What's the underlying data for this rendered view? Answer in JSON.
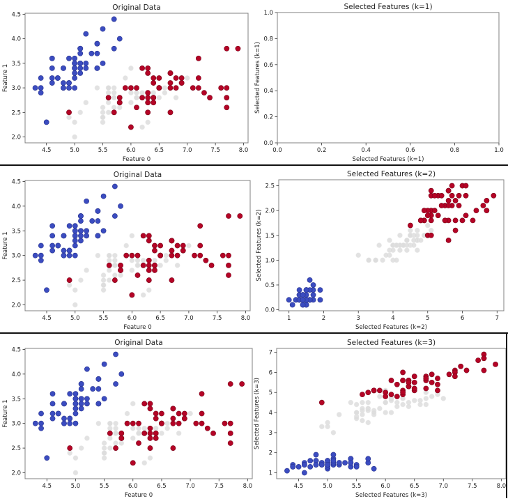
{
  "colors": {
    "class_0": "#3b4cc0",
    "class_1": "#dddddd",
    "class_2": "#b40426",
    "axis": "#808080",
    "text": "#222222"
  },
  "iris": {
    "sepal_length": [
      5.1,
      4.9,
      4.7,
      4.6,
      5.0,
      5.4,
      4.6,
      5.0,
      4.4,
      4.9,
      5.4,
      4.8,
      4.8,
      4.3,
      5.8,
      5.7,
      5.4,
      5.1,
      5.7,
      5.1,
      5.4,
      5.1,
      4.6,
      5.1,
      4.8,
      5.0,
      5.0,
      5.2,
      5.2,
      4.7,
      4.8,
      5.4,
      5.2,
      5.5,
      4.9,
      5.0,
      5.5,
      4.9,
      4.4,
      5.1,
      5.0,
      4.5,
      4.4,
      5.0,
      5.1,
      4.8,
      5.1,
      4.6,
      5.3,
      5.0,
      7.0,
      6.4,
      6.9,
      5.5,
      6.5,
      5.7,
      6.3,
      4.9,
      6.6,
      5.2,
      5.0,
      5.9,
      6.0,
      6.1,
      5.6,
      6.7,
      5.6,
      5.8,
      6.2,
      5.6,
      5.9,
      6.1,
      6.3,
      6.1,
      6.4,
      6.6,
      6.8,
      6.7,
      6.0,
      5.7,
      5.5,
      5.5,
      5.8,
      6.0,
      5.4,
      6.0,
      6.7,
      6.3,
      5.6,
      5.5,
      5.5,
      6.1,
      5.8,
      5.0,
      5.6,
      5.7,
      5.7,
      6.2,
      5.1,
      5.7,
      6.3,
      5.8,
      7.1,
      6.3,
      6.5,
      7.6,
      4.9,
      7.3,
      6.7,
      7.2,
      6.5,
      6.4,
      6.8,
      5.7,
      5.8,
      6.4,
      6.5,
      7.7,
      7.7,
      6.0,
      6.9,
      5.6,
      7.7,
      6.3,
      6.7,
      7.2,
      6.2,
      6.1,
      6.4,
      7.2,
      7.4,
      7.9,
      6.4,
      6.3,
      6.1,
      7.7,
      6.3,
      6.4,
      6.0,
      6.9,
      6.7,
      6.9,
      5.8,
      6.8,
      6.7,
      6.7,
      6.3,
      6.5,
      6.2,
      5.9
    ],
    "sepal_width": [
      3.5,
      3.0,
      3.2,
      3.1,
      3.6,
      3.9,
      3.4,
      3.4,
      2.9,
      3.1,
      3.7,
      3.4,
      3.0,
      3.0,
      4.0,
      4.4,
      3.9,
      3.5,
      3.8,
      3.8,
      3.4,
      3.7,
      3.6,
      3.3,
      3.4,
      3.0,
      3.4,
      3.5,
      3.4,
      3.2,
      3.1,
      3.4,
      4.1,
      4.2,
      3.1,
      3.2,
      3.5,
      3.6,
      3.0,
      3.4,
      3.5,
      2.3,
      3.2,
      3.5,
      3.8,
      3.0,
      3.8,
      3.2,
      3.7,
      3.3,
      3.2,
      3.2,
      3.1,
      2.3,
      2.8,
      2.8,
      3.3,
      2.4,
      2.9,
      2.7,
      2.0,
      3.0,
      2.2,
      2.9,
      2.9,
      3.1,
      3.0,
      2.7,
      2.2,
      2.5,
      3.2,
      2.8,
      2.5,
      2.8,
      2.9,
      3.0,
      2.8,
      3.0,
      2.9,
      2.6,
      2.4,
      2.4,
      2.7,
      2.7,
      3.0,
      3.4,
      3.1,
      2.3,
      3.0,
      2.5,
      2.6,
      3.0,
      2.6,
      2.3,
      2.7,
      3.0,
      2.9,
      2.9,
      2.5,
      2.8,
      3.3,
      2.7,
      3.0,
      2.9,
      3.0,
      3.0,
      2.5,
      2.9,
      2.5,
      3.6,
      3.2,
      2.7,
      3.0,
      2.5,
      2.8,
      3.2,
      3.0,
      3.8,
      2.6,
      2.2,
      3.2,
      2.8,
      2.8,
      2.7,
      3.3,
      3.2,
      2.8,
      3.0,
      2.8,
      3.0,
      2.8,
      3.8,
      2.8,
      2.8,
      2.6,
      3.0,
      3.4,
      3.1,
      3.0,
      3.1,
      3.1,
      3.1,
      2.7,
      3.2,
      3.3,
      3.0,
      2.5,
      3.0,
      3.4,
      3.0
    ],
    "petal_length": [
      1.4,
      1.4,
      1.3,
      1.5,
      1.4,
      1.7,
      1.4,
      1.5,
      1.4,
      1.5,
      1.5,
      1.6,
      1.4,
      1.1,
      1.2,
      1.5,
      1.3,
      1.4,
      1.7,
      1.5,
      1.7,
      1.5,
      1.0,
      1.7,
      1.9,
      1.6,
      1.6,
      1.5,
      1.4,
      1.6,
      1.6,
      1.5,
      1.5,
      1.4,
      1.5,
      1.2,
      1.3,
      1.4,
      1.3,
      1.5,
      1.3,
      1.3,
      1.3,
      1.6,
      1.9,
      1.4,
      1.6,
      1.4,
      1.5,
      1.4,
      4.7,
      4.5,
      4.9,
      4.0,
      4.6,
      4.5,
      4.7,
      3.3,
      4.6,
      3.9,
      3.5,
      4.2,
      4.0,
      4.7,
      3.6,
      4.4,
      4.5,
      4.1,
      4.5,
      3.9,
      4.8,
      4.0,
      4.9,
      4.7,
      4.3,
      4.4,
      4.8,
      5.0,
      4.5,
      3.5,
      3.8,
      3.7,
      3.9,
      5.1,
      4.5,
      4.5,
      4.7,
      4.4,
      4.1,
      4.0,
      4.4,
      4.6,
      4.0,
      3.3,
      4.2,
      4.2,
      4.2,
      4.3,
      3.0,
      4.1,
      6.0,
      5.1,
      5.9,
      5.6,
      5.8,
      6.6,
      4.5,
      6.3,
      5.8,
      6.1,
      5.1,
      5.3,
      5.5,
      5.0,
      5.1,
      5.3,
      5.5,
      6.7,
      6.9,
      5.0,
      5.7,
      4.9,
      6.7,
      4.9,
      5.7,
      6.0,
      4.8,
      4.9,
      5.6,
      5.8,
      6.1,
      6.4,
      5.6,
      5.1,
      5.6,
      6.1,
      5.6,
      5.5,
      4.8,
      5.4,
      5.6,
      5.1,
      5.1,
      5.9,
      5.7,
      5.2,
      5.0,
      5.2,
      5.4,
      5.1
    ],
    "petal_width": [
      0.2,
      0.2,
      0.2,
      0.2,
      0.2,
      0.4,
      0.3,
      0.2,
      0.2,
      0.1,
      0.2,
      0.2,
      0.1,
      0.1,
      0.2,
      0.4,
      0.4,
      0.3,
      0.3,
      0.3,
      0.2,
      0.4,
      0.2,
      0.5,
      0.2,
      0.2,
      0.4,
      0.2,
      0.2,
      0.2,
      0.2,
      0.4,
      0.1,
      0.2,
      0.2,
      0.2,
      0.2,
      0.1,
      0.2,
      0.2,
      0.3,
      0.3,
      0.2,
      0.6,
      0.4,
      0.3,
      0.2,
      0.2,
      0.2,
      0.2,
      1.4,
      1.5,
      1.5,
      1.3,
      1.5,
      1.3,
      1.6,
      1.0,
      1.3,
      1.4,
      1.0,
      1.5,
      1.0,
      1.4,
      1.3,
      1.4,
      1.5,
      1.0,
      1.5,
      1.1,
      1.8,
      1.3,
      1.5,
      1.2,
      1.3,
      1.4,
      1.4,
      1.7,
      1.5,
      1.0,
      1.1,
      1.0,
      1.2,
      1.6,
      1.5,
      1.6,
      1.5,
      1.3,
      1.3,
      1.3,
      1.2,
      1.4,
      1.2,
      1.0,
      1.3,
      1.2,
      1.3,
      1.3,
      1.1,
      1.3,
      2.5,
      1.9,
      2.1,
      1.8,
      2.2,
      2.1,
      1.7,
      1.8,
      1.8,
      2.5,
      2.0,
      1.9,
      2.1,
      2.0,
      2.4,
      2.3,
      1.8,
      2.2,
      2.3,
      1.5,
      2.3,
      2.0,
      2.0,
      1.8,
      2.1,
      1.8,
      1.8,
      1.8,
      2.1,
      1.6,
      1.9,
      2.0,
      2.2,
      1.5,
      1.4,
      2.3,
      2.4,
      1.8,
      1.8,
      2.1,
      2.4,
      2.3,
      1.9,
      2.3,
      2.5,
      2.3,
      1.9,
      2.0,
      2.3,
      1.8
    ],
    "class_counts": [
      50,
      50,
      50
    ]
  },
  "chart_data": [
    {
      "id": "row1-left",
      "type": "scatter",
      "title": "Original Data",
      "xlabel": "Feature 0",
      "ylabel": "Feature 1",
      "x_feature": "sepal_length",
      "y_feature": "sepal_width",
      "xlim": [
        4.12,
        8.08
      ],
      "ylim": [
        1.88,
        4.52
      ],
      "xticks": [
        "4.5",
        "5.0",
        "5.5",
        "6.0",
        "6.5",
        "7.0",
        "7.5",
        "8.0"
      ],
      "yticks": [
        "2.0",
        "2.5",
        "3.0",
        "3.5",
        "4.0",
        "4.5"
      ],
      "grid": false,
      "legend": "none"
    },
    {
      "id": "row1-right",
      "type": "scatter",
      "title": "Selected Features (k=1)",
      "xlabel": "Selected Features (k=1)",
      "ylabel": "Selected Features (k=1)",
      "x_feature": null,
      "y_feature": null,
      "xlim": [
        0,
        1
      ],
      "ylim": [
        0,
        1
      ],
      "xticks": [
        "0.0",
        "0.2",
        "0.4",
        "0.6",
        "0.8",
        "1.0"
      ],
      "yticks": [
        "0.0",
        "0.2",
        "0.4",
        "0.6",
        "0.8",
        "1.0"
      ],
      "grid": false,
      "legend": "none"
    },
    {
      "id": "row2-left",
      "type": "scatter",
      "title": "Original Data",
      "xlabel": "Feature 0",
      "ylabel": "Feature 1",
      "x_feature": "sepal_length",
      "y_feature": "sepal_width",
      "xlim": [
        4.12,
        8.08
      ],
      "ylim": [
        1.88,
        4.52
      ],
      "xticks": [
        "4.5",
        "5.0",
        "5.5",
        "6.0",
        "6.5",
        "7.0",
        "7.5",
        "8.0"
      ],
      "yticks": [
        "2.0",
        "2.5",
        "3.0",
        "3.5",
        "4.0",
        "4.5"
      ],
      "grid": false,
      "legend": "none"
    },
    {
      "id": "row2-right",
      "type": "scatter",
      "title": "Selected Features (k=2)",
      "xlabel": "Selected Features (k=2)",
      "ylabel": "Selected Features (k=2)",
      "x_feature": "petal_length",
      "y_feature": "petal_width",
      "xlim": [
        0.705,
        7.195
      ],
      "ylim": [
        -0.02,
        2.62
      ],
      "xticks": [
        "1",
        "2",
        "3",
        "4",
        "5",
        "6",
        "7"
      ],
      "yticks": [
        "0.0",
        "0.5",
        "1.0",
        "1.5",
        "2.0",
        "2.5"
      ],
      "grid": false,
      "legend": "none"
    },
    {
      "id": "row3-left",
      "type": "scatter",
      "title": "Original Data",
      "xlabel": "Feature 0",
      "ylabel": "Feature 1",
      "x_feature": "sepal_length",
      "y_feature": "sepal_width",
      "xlim": [
        4.12,
        8.08
      ],
      "ylim": [
        1.88,
        4.52
      ],
      "xticks": [
        "4.5",
        "5.0",
        "5.5",
        "6.0",
        "6.5",
        "7.0",
        "7.5",
        "8.0"
      ],
      "yticks": [
        "2.0",
        "2.5",
        "3.0",
        "3.5",
        "4.0",
        "4.5"
      ],
      "grid": false,
      "legend": "none"
    },
    {
      "id": "row3-right",
      "type": "scatter",
      "title": "Selected Features (k=3)",
      "xlabel": "Selected Features (k=3)",
      "ylabel": "Selected Features (k=3)",
      "x_feature": "sepal_length",
      "y_feature": "petal_length",
      "xlim": [
        4.12,
        8.08
      ],
      "ylim": [
        0.705,
        7.195
      ],
      "xticks": [
        "4.5",
        "5.0",
        "5.5",
        "6.0",
        "6.5",
        "7.0",
        "7.5",
        "8.0"
      ],
      "yticks": [
        "1",
        "2",
        "3",
        "4",
        "5",
        "6",
        "7"
      ],
      "grid": false,
      "legend": "none"
    }
  ]
}
